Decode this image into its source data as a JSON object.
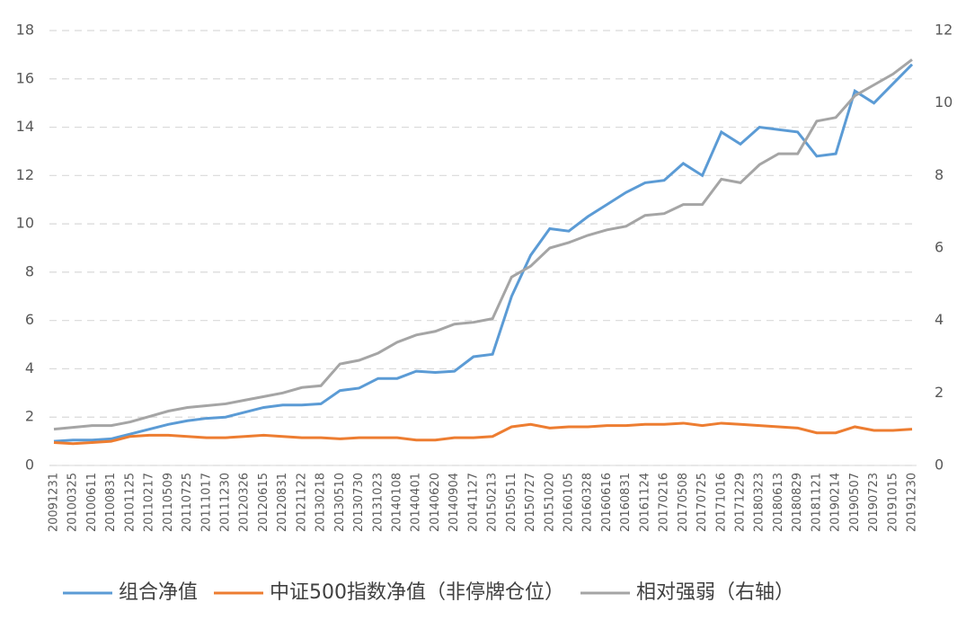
{
  "chart_data": {
    "type": "line",
    "categories": [
      "20091231",
      "20100325",
      "20100611",
      "20100831",
      "20101125",
      "20110217",
      "20110509",
      "20110725",
      "20111017",
      "20111230",
      "20120326",
      "20120615",
      "20120831",
      "20121122",
      "20130218",
      "20130510",
      "20130730",
      "20131023",
      "20140108",
      "20140401",
      "20140620",
      "20140904",
      "20141127",
      "20150213",
      "20150511",
      "20150727",
      "20151020",
      "20160105",
      "20160328",
      "20160616",
      "20160831",
      "20161124",
      "20170216",
      "20170508",
      "20170725",
      "20171016",
      "20171229",
      "20180323",
      "20180613",
      "20180829",
      "20181121",
      "20190214",
      "20190507",
      "20190723",
      "20191015",
      "20191230"
    ],
    "series": [
      {
        "name": "组合净值",
        "color": "#5b9bd5",
        "values": [
          1.0,
          1.05,
          1.05,
          1.1,
          1.3,
          1.5,
          1.7,
          1.85,
          1.95,
          2.0,
          2.2,
          2.4,
          2.5,
          2.5,
          2.55,
          3.1,
          3.2,
          3.6,
          3.6,
          3.9,
          3.85,
          3.9,
          4.5,
          4.6,
          7.0,
          8.7,
          9.8,
          9.7,
          10.3,
          10.8,
          11.3,
          11.7,
          11.8,
          12.5,
          12.0,
          13.8,
          13.3,
          14.0,
          13.9,
          13.8,
          12.8,
          12.9,
          15.5,
          15.0,
          15.8,
          16.6
        ]
      },
      {
        "name": "中证500指数净值（非停牌仓位）",
        "color": "#ed7d31",
        "values": [
          0.95,
          0.9,
          0.95,
          1.0,
          1.2,
          1.25,
          1.25,
          1.2,
          1.15,
          1.15,
          1.2,
          1.25,
          1.2,
          1.15,
          1.15,
          1.1,
          1.15,
          1.15,
          1.15,
          1.05,
          1.05,
          1.15,
          1.15,
          1.2,
          1.6,
          1.7,
          1.55,
          1.6,
          1.6,
          1.65,
          1.65,
          1.7,
          1.7,
          1.75,
          1.65,
          1.75,
          1.7,
          1.65,
          1.6,
          1.55,
          1.35,
          1.35,
          1.6,
          1.45,
          1.45,
          1.5
        ]
      },
      {
        "name": "相对强弱（右轴）",
        "color": "#a5a5a5",
        "axis": "y2",
        "values": [
          1.0,
          1.05,
          1.1,
          1.1,
          1.2,
          1.35,
          1.5,
          1.6,
          1.65,
          1.7,
          1.8,
          1.9,
          2.0,
          2.15,
          2.2,
          2.8,
          2.9,
          3.1,
          3.4,
          3.6,
          3.7,
          3.9,
          3.95,
          4.05,
          5.2,
          5.5,
          6.0,
          6.15,
          6.35,
          6.5,
          6.6,
          6.9,
          6.95,
          7.2,
          7.2,
          7.9,
          7.8,
          8.3,
          8.6,
          8.6,
          9.5,
          9.6,
          10.2,
          10.5,
          10.8,
          11.2
        ]
      }
    ],
    "ylim": [
      0,
      18
    ],
    "yticks": [
      0,
      2,
      4,
      6,
      8,
      10,
      12,
      14,
      16,
      18
    ],
    "y2lim": [
      0,
      12
    ],
    "y2ticks": [
      0,
      2,
      4,
      6,
      8,
      10,
      12
    ],
    "grid": true,
    "legend": "bottom"
  }
}
